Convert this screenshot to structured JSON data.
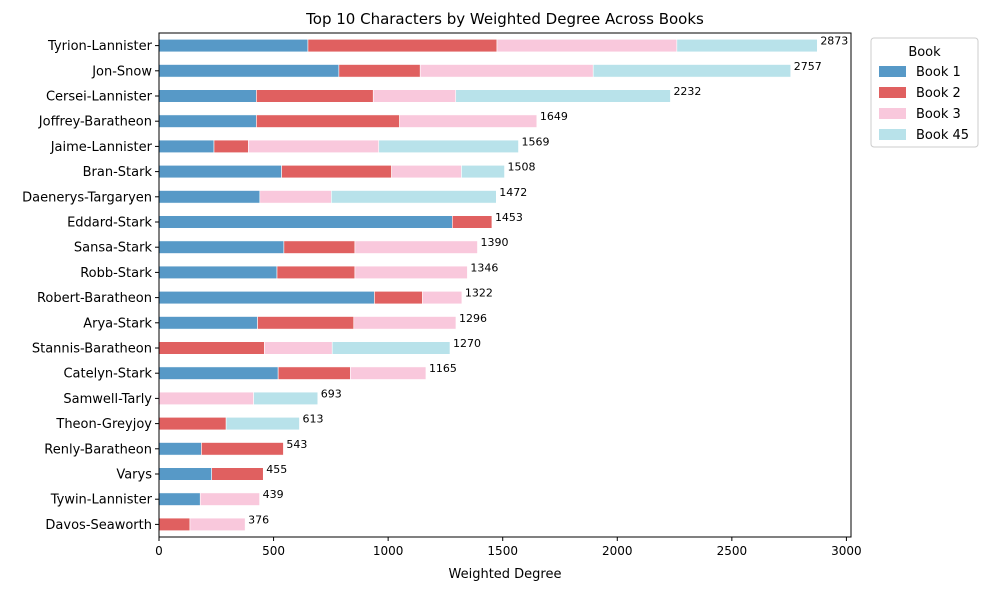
{
  "chart_data": {
    "type": "bar",
    "orientation": "horizontal",
    "stacked": true,
    "title": "Top 10 Characters by Weighted Degree Across Books",
    "xlabel": "Weighted Degree",
    "ylabel": "",
    "xlim": [
      0,
      3020
    ],
    "xticks": [
      0,
      500,
      1000,
      1500,
      2000,
      2500,
      3000
    ],
    "grid": false,
    "legend": {
      "title": "Book",
      "placement": "outside-top-right"
    },
    "categories": [
      "Tyrion-Lannister",
      "Jon-Snow",
      "Cersei-Lannister",
      "Joffrey-Baratheon",
      "Jaime-Lannister",
      "Bran-Stark",
      "Daenerys-Targaryen",
      "Eddard-Stark",
      "Sansa-Stark",
      "Robb-Stark",
      "Robert-Baratheon",
      "Arya-Stark",
      "Stannis-Baratheon",
      "Catelyn-Stark",
      "Samwell-Tarly",
      "Theon-Greyjoy",
      "Renly-Baratheon",
      "Varys",
      "Tywin-Lannister",
      "Davos-Seaworth"
    ],
    "series": [
      {
        "name": "Book 1",
        "color": "#5799c7",
        "values": [
          650,
          785,
          425,
          425,
          240,
          535,
          440,
          1280,
          545,
          515,
          940,
          430,
          0,
          520,
          0,
          0,
          185,
          230,
          180,
          0
        ]
      },
      {
        "name": "Book 2",
        "color": "#e06060",
        "values": [
          825,
          355,
          510,
          625,
          150,
          480,
          0,
          173,
          310,
          340,
          210,
          420,
          460,
          315,
          0,
          293,
          358,
          225,
          0,
          135
        ]
      },
      {
        "name": "Book 3",
        "color": "#f9c8dc",
        "values": [
          785,
          755,
          360,
          599,
          569,
          305,
          312,
          0,
          535,
          491,
          172,
          446,
          296,
          330,
          413,
          0,
          0,
          0,
          259,
          241
        ]
      },
      {
        "name": "Book 45",
        "color": "#b8e2ea",
        "values": [
          613,
          862,
          937,
          0,
          610,
          188,
          720,
          0,
          0,
          0,
          0,
          0,
          514,
          0,
          280,
          320,
          0,
          0,
          0,
          0
        ]
      }
    ],
    "totals": [
      2873,
      2757,
      2232,
      1649,
      1569,
      1508,
      1472,
      1453,
      1390,
      1346,
      1322,
      1296,
      1270,
      1165,
      693,
      613,
      543,
      455,
      439,
      376
    ]
  }
}
